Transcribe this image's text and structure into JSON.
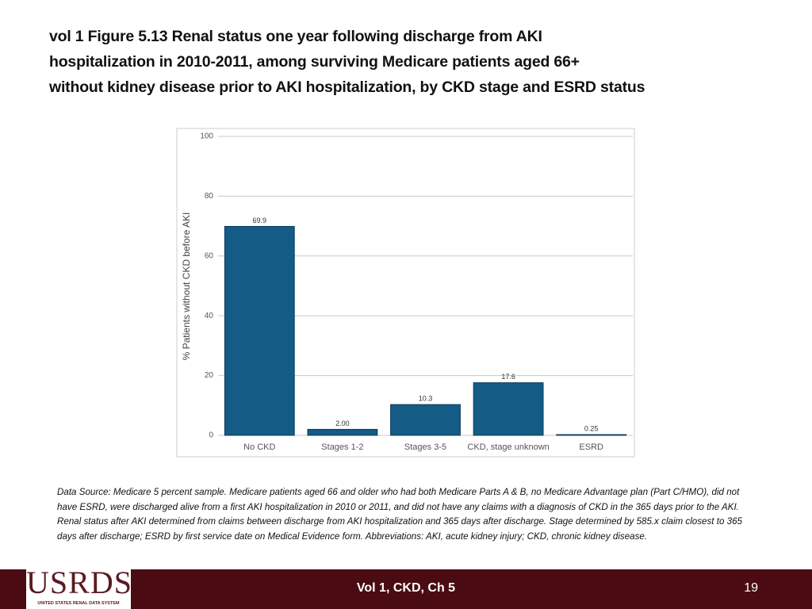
{
  "title_lines": [
    "vol 1 Figure 5.13  Renal status one year following discharge from AKI",
    "hospitalization in 2010-2011, among surviving Medicare patients aged 66+",
    "without kidney disease prior to AKI hospitalization, by CKD stage and ESRD status"
  ],
  "chart_data": {
    "type": "bar",
    "y_label": "% Patients without CKD before AKI",
    "categories": [
      "No CKD",
      "Stages 1-2",
      "Stages 3-5",
      "CKD, stage unknown",
      "ESRD"
    ],
    "values": [
      69.9,
      2.0,
      10.3,
      17.6,
      0.25
    ],
    "value_labels": [
      "69.9",
      "2.00",
      "10.3",
      "17.6",
      "0.25"
    ],
    "color": "#145b86",
    "ylim": [
      0,
      100
    ],
    "yticks": [
      0,
      20,
      40,
      60,
      80,
      100
    ],
    "grid": true
  },
  "footnote": "Data Source: Medicare 5 percent sample. Medicare patients aged 66 and older who had both Medicare Parts A & B, no Medicare Advantage plan (Part C/HMO), did not have ESRD, were discharged alive from a first AKI hospitalization in 2010 or 2011, and did not have any claims with a diagnosis of CKD in the 365 days prior to the AKI. Renal status after AKI determined from claims between discharge from AKI hospitalization and 365 days after discharge. Stage determined by 585.x claim closest to 365 days after discharge; ESRD by first service date on Medical Evidence form. Abbreviations: AKI, acute kidney injury; CKD, chronic kidney disease.",
  "footer": {
    "logo": "USRDS",
    "logo_subtitle": "UNITED STATES RENAL DATA SYSTEM",
    "center": "Vol 1, CKD, Ch 5",
    "page": "19"
  }
}
